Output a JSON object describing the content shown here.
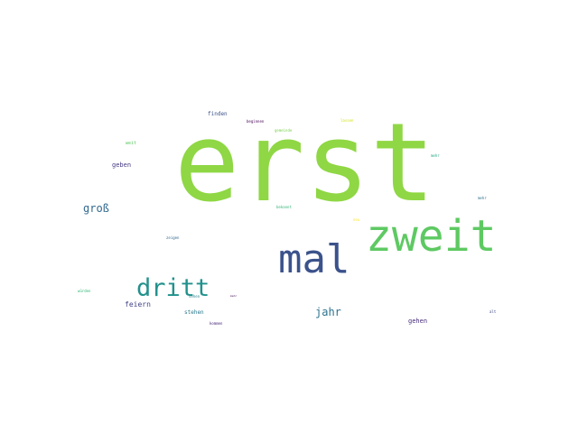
{
  "word_cloud": {
    "words": [
      {
        "text": "erst",
        "color": "#8fd744"
      },
      {
        "text": "zweit",
        "color": "#5ec962"
      },
      {
        "text": "mal",
        "color": "#3b528b"
      },
      {
        "text": "dritt",
        "color": "#21918c"
      },
      {
        "text": "groß",
        "color": "#31688e"
      },
      {
        "text": "jahr",
        "color": "#2c728e"
      },
      {
        "text": "feiern",
        "color": "#414487"
      },
      {
        "text": "geben",
        "color": "#443a83"
      },
      {
        "text": "gehen",
        "color": "#472d7b"
      },
      {
        "text": "finden",
        "color": "#3b528b"
      },
      {
        "text": "beginnen",
        "color": "#440154"
      },
      {
        "text": "gemeinde",
        "color": "#7ad151"
      },
      {
        "text": "stehen",
        "color": "#2a788e"
      },
      {
        "text": "zeigen",
        "color": "#31688e"
      },
      {
        "text": "bekannt",
        "color": "#35b779"
      },
      {
        "text": "weit",
        "color": "#5ec962"
      },
      {
        "text": "kommen",
        "color": "#482878"
      },
      {
        "text": "sehen",
        "color": "#26828e"
      },
      {
        "text": "würden",
        "color": "#35b779"
      },
      {
        "text": "mehr",
        "color": "#22a884"
      },
      {
        "text": "mehr",
        "color": "#2c728e"
      },
      {
        "text": "alt",
        "color": "#3e4989"
      },
      {
        "text": "neu",
        "color": "#fde725"
      },
      {
        "text": "lassen",
        "color": "#d2e21b"
      },
      {
        "text": "mehr",
        "color": "#440154"
      }
    ]
  }
}
